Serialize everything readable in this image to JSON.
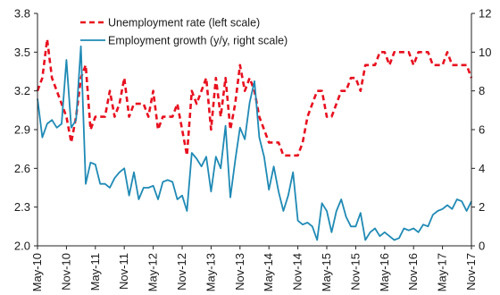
{
  "chart_data": {
    "type": "line",
    "title": "",
    "legend_position": "top-left",
    "x_tick_labels": [
      "May-10",
      "Nov-10",
      "May-11",
      "Nov-11",
      "May-12",
      "Nov-12",
      "May-13",
      "Nov-13",
      "May-14",
      "Nov-14",
      "May-15",
      "Nov-15",
      "May-16",
      "Nov-16",
      "May-17",
      "Nov-17"
    ],
    "x_range": [
      "2010-05",
      "2017-11"
    ],
    "left_axis": {
      "ticks": [
        "2.0",
        "2.3",
        "2.6",
        "2.9",
        "3.2",
        "3.5",
        "3.8"
      ],
      "min": 2.0,
      "max": 3.8
    },
    "right_axis": {
      "ticks": [
        "0",
        "2",
        "4",
        "6",
        "8",
        "10",
        "12"
      ],
      "min": 0,
      "max": 12
    },
    "series": [
      {
        "name": "Unemployment rate (left scale)",
        "axis": "left",
        "color": "#e8101f",
        "style": "dashed",
        "points": [
          [
            "2010-05",
            3.2
          ],
          [
            "2010-06",
            3.3
          ],
          [
            "2010-07",
            3.6
          ],
          [
            "2010-08",
            3.3
          ],
          [
            "2010-09",
            3.2
          ],
          [
            "2010-10",
            3.1
          ],
          [
            "2010-11",
            3.0
          ],
          [
            "2010-12",
            2.8
          ],
          [
            "2011-01",
            3.0
          ],
          [
            "2011-02",
            3.3
          ],
          [
            "2011-03",
            3.4
          ],
          [
            "2011-04",
            2.9
          ],
          [
            "2011-05",
            3.0
          ],
          [
            "2011-06",
            3.0
          ],
          [
            "2011-07",
            3.0
          ],
          [
            "2011-08",
            3.2
          ],
          [
            "2011-09",
            3.0
          ],
          [
            "2011-10",
            3.1
          ],
          [
            "2011-11",
            3.3
          ],
          [
            "2011-12",
            3.0
          ],
          [
            "2012-01",
            3.1
          ],
          [
            "2012-02",
            3.1
          ],
          [
            "2012-03",
            3.1
          ],
          [
            "2012-04",
            3.0
          ],
          [
            "2012-05",
            3.2
          ],
          [
            "2012-06",
            2.9
          ],
          [
            "2012-07",
            3.0
          ],
          [
            "2012-08",
            3.0
          ],
          [
            "2012-09",
            3.0
          ],
          [
            "2012-10",
            3.1
          ],
          [
            "2012-11",
            2.9
          ],
          [
            "2012-12",
            2.7
          ],
          [
            "2013-01",
            3.2
          ],
          [
            "2013-02",
            3.1
          ],
          [
            "2013-03",
            3.2
          ],
          [
            "2013-04",
            3.3
          ],
          [
            "2013-05",
            2.9
          ],
          [
            "2013-06",
            3.3
          ],
          [
            "2013-07",
            3.0
          ],
          [
            "2013-08",
            3.3
          ],
          [
            "2013-09",
            2.9
          ],
          [
            "2013-10",
            3.1
          ],
          [
            "2013-11",
            3.4
          ],
          [
            "2013-12",
            3.2
          ],
          [
            "2014-01",
            3.3
          ],
          [
            "2014-02",
            3.2
          ],
          [
            "2014-03",
            3.0
          ],
          [
            "2014-04",
            2.9
          ],
          [
            "2014-05",
            2.8
          ],
          [
            "2014-06",
            2.8
          ],
          [
            "2014-07",
            2.8
          ],
          [
            "2014-08",
            2.7
          ],
          [
            "2014-09",
            2.7
          ],
          [
            "2014-10",
            2.7
          ],
          [
            "2014-11",
            2.7
          ],
          [
            "2014-12",
            2.8
          ],
          [
            "2015-01",
            3.0
          ],
          [
            "2015-02",
            3.1
          ],
          [
            "2015-03",
            3.2
          ],
          [
            "2015-04",
            3.2
          ],
          [
            "2015-05",
            3.0
          ],
          [
            "2015-06",
            3.0
          ],
          [
            "2015-07",
            3.1
          ],
          [
            "2015-08",
            3.2
          ],
          [
            "2015-09",
            3.2
          ],
          [
            "2015-10",
            3.3
          ],
          [
            "2015-11",
            3.3
          ],
          [
            "2015-12",
            3.2
          ],
          [
            "2016-01",
            3.4
          ],
          [
            "2016-02",
            3.4
          ],
          [
            "2016-03",
            3.4
          ],
          [
            "2016-04",
            3.5
          ],
          [
            "2016-05",
            3.5
          ],
          [
            "2016-06",
            3.4
          ],
          [
            "2016-07",
            3.5
          ],
          [
            "2016-08",
            3.5
          ],
          [
            "2016-09",
            3.5
          ],
          [
            "2016-10",
            3.5
          ],
          [
            "2016-11",
            3.4
          ],
          [
            "2016-12",
            3.5
          ],
          [
            "2017-01",
            3.5
          ],
          [
            "2017-02",
            3.5
          ],
          [
            "2017-03",
            3.4
          ],
          [
            "2017-04",
            3.4
          ],
          [
            "2017-05",
            3.4
          ],
          [
            "2017-06",
            3.5
          ],
          [
            "2017-07",
            3.4
          ],
          [
            "2017-08",
            3.4
          ],
          [
            "2017-09",
            3.4
          ],
          [
            "2017-10",
            3.4
          ],
          [
            "2017-11",
            3.3
          ]
        ]
      },
      {
        "name": "Employment growth (y/y, right scale)",
        "axis": "right",
        "color": "#1f8ab5",
        "style": "solid",
        "points": [
          [
            "2010-05",
            7.6
          ],
          [
            "2010-06",
            5.6
          ],
          [
            "2010-07",
            6.3
          ],
          [
            "2010-08",
            6.5
          ],
          [
            "2010-09",
            6.1
          ],
          [
            "2010-10",
            6.3
          ],
          [
            "2010-11",
            9.6
          ],
          [
            "2010-12",
            6.1
          ],
          [
            "2011-01",
            6.5
          ],
          [
            "2011-02",
            10.3
          ],
          [
            "2011-03",
            3.2
          ],
          [
            "2011-04",
            4.3
          ],
          [
            "2011-05",
            4.2
          ],
          [
            "2011-06",
            3.2
          ],
          [
            "2011-07",
            3.2
          ],
          [
            "2011-08",
            3.0
          ],
          [
            "2011-09",
            3.5
          ],
          [
            "2011-10",
            3.8
          ],
          [
            "2011-11",
            4.0
          ],
          [
            "2011-12",
            2.6
          ],
          [
            "2012-01",
            3.8
          ],
          [
            "2012-02",
            2.4
          ],
          [
            "2012-03",
            3.0
          ],
          [
            "2012-04",
            3.0
          ],
          [
            "2012-05",
            3.1
          ],
          [
            "2012-06",
            2.4
          ],
          [
            "2012-07",
            3.3
          ],
          [
            "2012-08",
            3.4
          ],
          [
            "2012-09",
            3.3
          ],
          [
            "2012-10",
            2.4
          ],
          [
            "2012-11",
            2.6
          ],
          [
            "2012-12",
            1.8
          ],
          [
            "2013-01",
            4.8
          ],
          [
            "2013-02",
            4.5
          ],
          [
            "2013-03",
            4.1
          ],
          [
            "2013-04",
            4.6
          ],
          [
            "2013-05",
            2.8
          ],
          [
            "2013-06",
            4.6
          ],
          [
            "2013-07",
            4.0
          ],
          [
            "2013-08",
            6.2
          ],
          [
            "2013-09",
            2.5
          ],
          [
            "2013-10",
            4.4
          ],
          [
            "2013-11",
            6.1
          ],
          [
            "2013-12",
            5.5
          ],
          [
            "2014-01",
            7.4
          ],
          [
            "2014-02",
            8.5
          ],
          [
            "2014-03",
            5.6
          ],
          [
            "2014-04",
            4.6
          ],
          [
            "2014-05",
            2.9
          ],
          [
            "2014-06",
            4.1
          ],
          [
            "2014-07",
            2.8
          ],
          [
            "2014-08",
            1.8
          ],
          [
            "2014-09",
            2.6
          ],
          [
            "2014-10",
            3.8
          ],
          [
            "2014-11",
            1.3
          ],
          [
            "2014-12",
            1.1
          ],
          [
            "2015-01",
            1.2
          ],
          [
            "2015-02",
            1.0
          ],
          [
            "2015-03",
            0.3
          ],
          [
            "2015-04",
            2.2
          ],
          [
            "2015-05",
            1.8
          ],
          [
            "2015-06",
            0.7
          ],
          [
            "2015-07",
            1.8
          ],
          [
            "2015-08",
            2.4
          ],
          [
            "2015-09",
            1.5
          ],
          [
            "2015-10",
            1.0
          ],
          [
            "2015-11",
            1.0
          ],
          [
            "2015-12",
            1.7
          ],
          [
            "2016-01",
            0.3
          ],
          [
            "2016-02",
            0.7
          ],
          [
            "2016-03",
            0.9
          ],
          [
            "2016-04",
            0.5
          ],
          [
            "2016-05",
            0.7
          ],
          [
            "2016-06",
            0.5
          ],
          [
            "2016-07",
            0.3
          ],
          [
            "2016-08",
            0.4
          ],
          [
            "2016-09",
            0.9
          ],
          [
            "2016-10",
            0.8
          ],
          [
            "2016-11",
            0.9
          ],
          [
            "2016-12",
            0.7
          ],
          [
            "2017-01",
            1.1
          ],
          [
            "2017-02",
            1.0
          ],
          [
            "2017-03",
            1.6
          ],
          [
            "2017-04",
            1.8
          ],
          [
            "2017-05",
            1.9
          ],
          [
            "2017-06",
            2.1
          ],
          [
            "2017-07",
            1.9
          ],
          [
            "2017-08",
            2.4
          ],
          [
            "2017-09",
            2.3
          ],
          [
            "2017-10",
            1.8
          ],
          [
            "2017-11",
            2.3
          ]
        ]
      }
    ]
  }
}
